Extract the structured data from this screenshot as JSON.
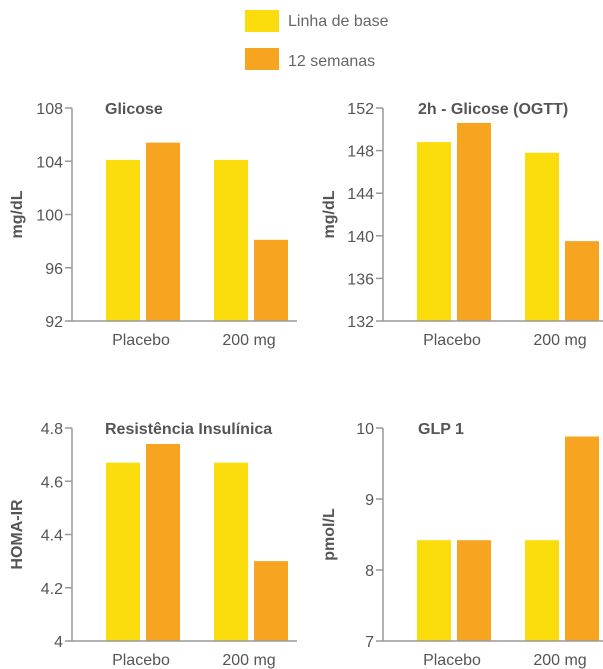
{
  "legend": [
    {
      "label": "Linha de base",
      "color": "#FBDD0E"
    },
    {
      "label": "12 semanas",
      "color": "#F7A521"
    }
  ],
  "chart_data": [
    {
      "type": "bar",
      "title": "Glicose",
      "ylabel": "mg/dL",
      "xlabel": "",
      "categories": [
        "Placebo",
        "200 mg"
      ],
      "series": [
        {
          "name": "Linha de base",
          "values": [
            104.1,
            104.1
          ]
        },
        {
          "name": "12 semanas",
          "values": [
            105.4,
            98.1
          ]
        }
      ],
      "ylim": [
        92,
        108
      ],
      "yticks": [
        "92",
        "96",
        "100",
        "104",
        "108"
      ],
      "tick_values": [
        92,
        96,
        100,
        104,
        108
      ]
    },
    {
      "type": "bar",
      "title": "2h - Glicose (OGTT)",
      "ylabel": "mg/dL",
      "xlabel": "",
      "categories": [
        "Placebo",
        "200 mg"
      ],
      "series": [
        {
          "name": "Linha de base",
          "values": [
            148.8,
            147.8
          ]
        },
        {
          "name": "12 semanas",
          "values": [
            150.6,
            139.5
          ]
        }
      ],
      "ylim": [
        132,
        152
      ],
      "yticks": [
        "132",
        "136",
        "140",
        "144",
        "148",
        "152"
      ],
      "tick_values": [
        132,
        136,
        140,
        144,
        148,
        152
      ]
    },
    {
      "type": "bar",
      "title": "Resistência Insulínica",
      "ylabel": "HOMA-IR",
      "xlabel": "",
      "categories": [
        "Placebo",
        "200 mg"
      ],
      "series": [
        {
          "name": "Linha de base",
          "values": [
            4.67,
            4.67
          ]
        },
        {
          "name": "12 semanas",
          "values": [
            4.74,
            4.3
          ]
        }
      ],
      "ylim": [
        4,
        4.8
      ],
      "yticks": [
        "4",
        "4.2",
        "4.4",
        "4.6",
        "4.8"
      ],
      "tick_values": [
        4,
        4.2,
        4.4,
        4.6,
        4.8
      ]
    },
    {
      "type": "bar",
      "title": "GLP 1",
      "ylabel": "pmol/L",
      "xlabel": "",
      "categories": [
        "Placebo",
        "200 mg"
      ],
      "series": [
        {
          "name": "Linha de base",
          "values": [
            8.42,
            8.42
          ]
        },
        {
          "name": "12 semanas",
          "values": [
            8.42,
            9.88
          ]
        }
      ],
      "ylim": [
        7,
        10
      ],
      "yticks": [
        "7",
        "8",
        "9",
        "10"
      ],
      "tick_values": [
        7,
        8,
        9,
        10
      ]
    }
  ]
}
